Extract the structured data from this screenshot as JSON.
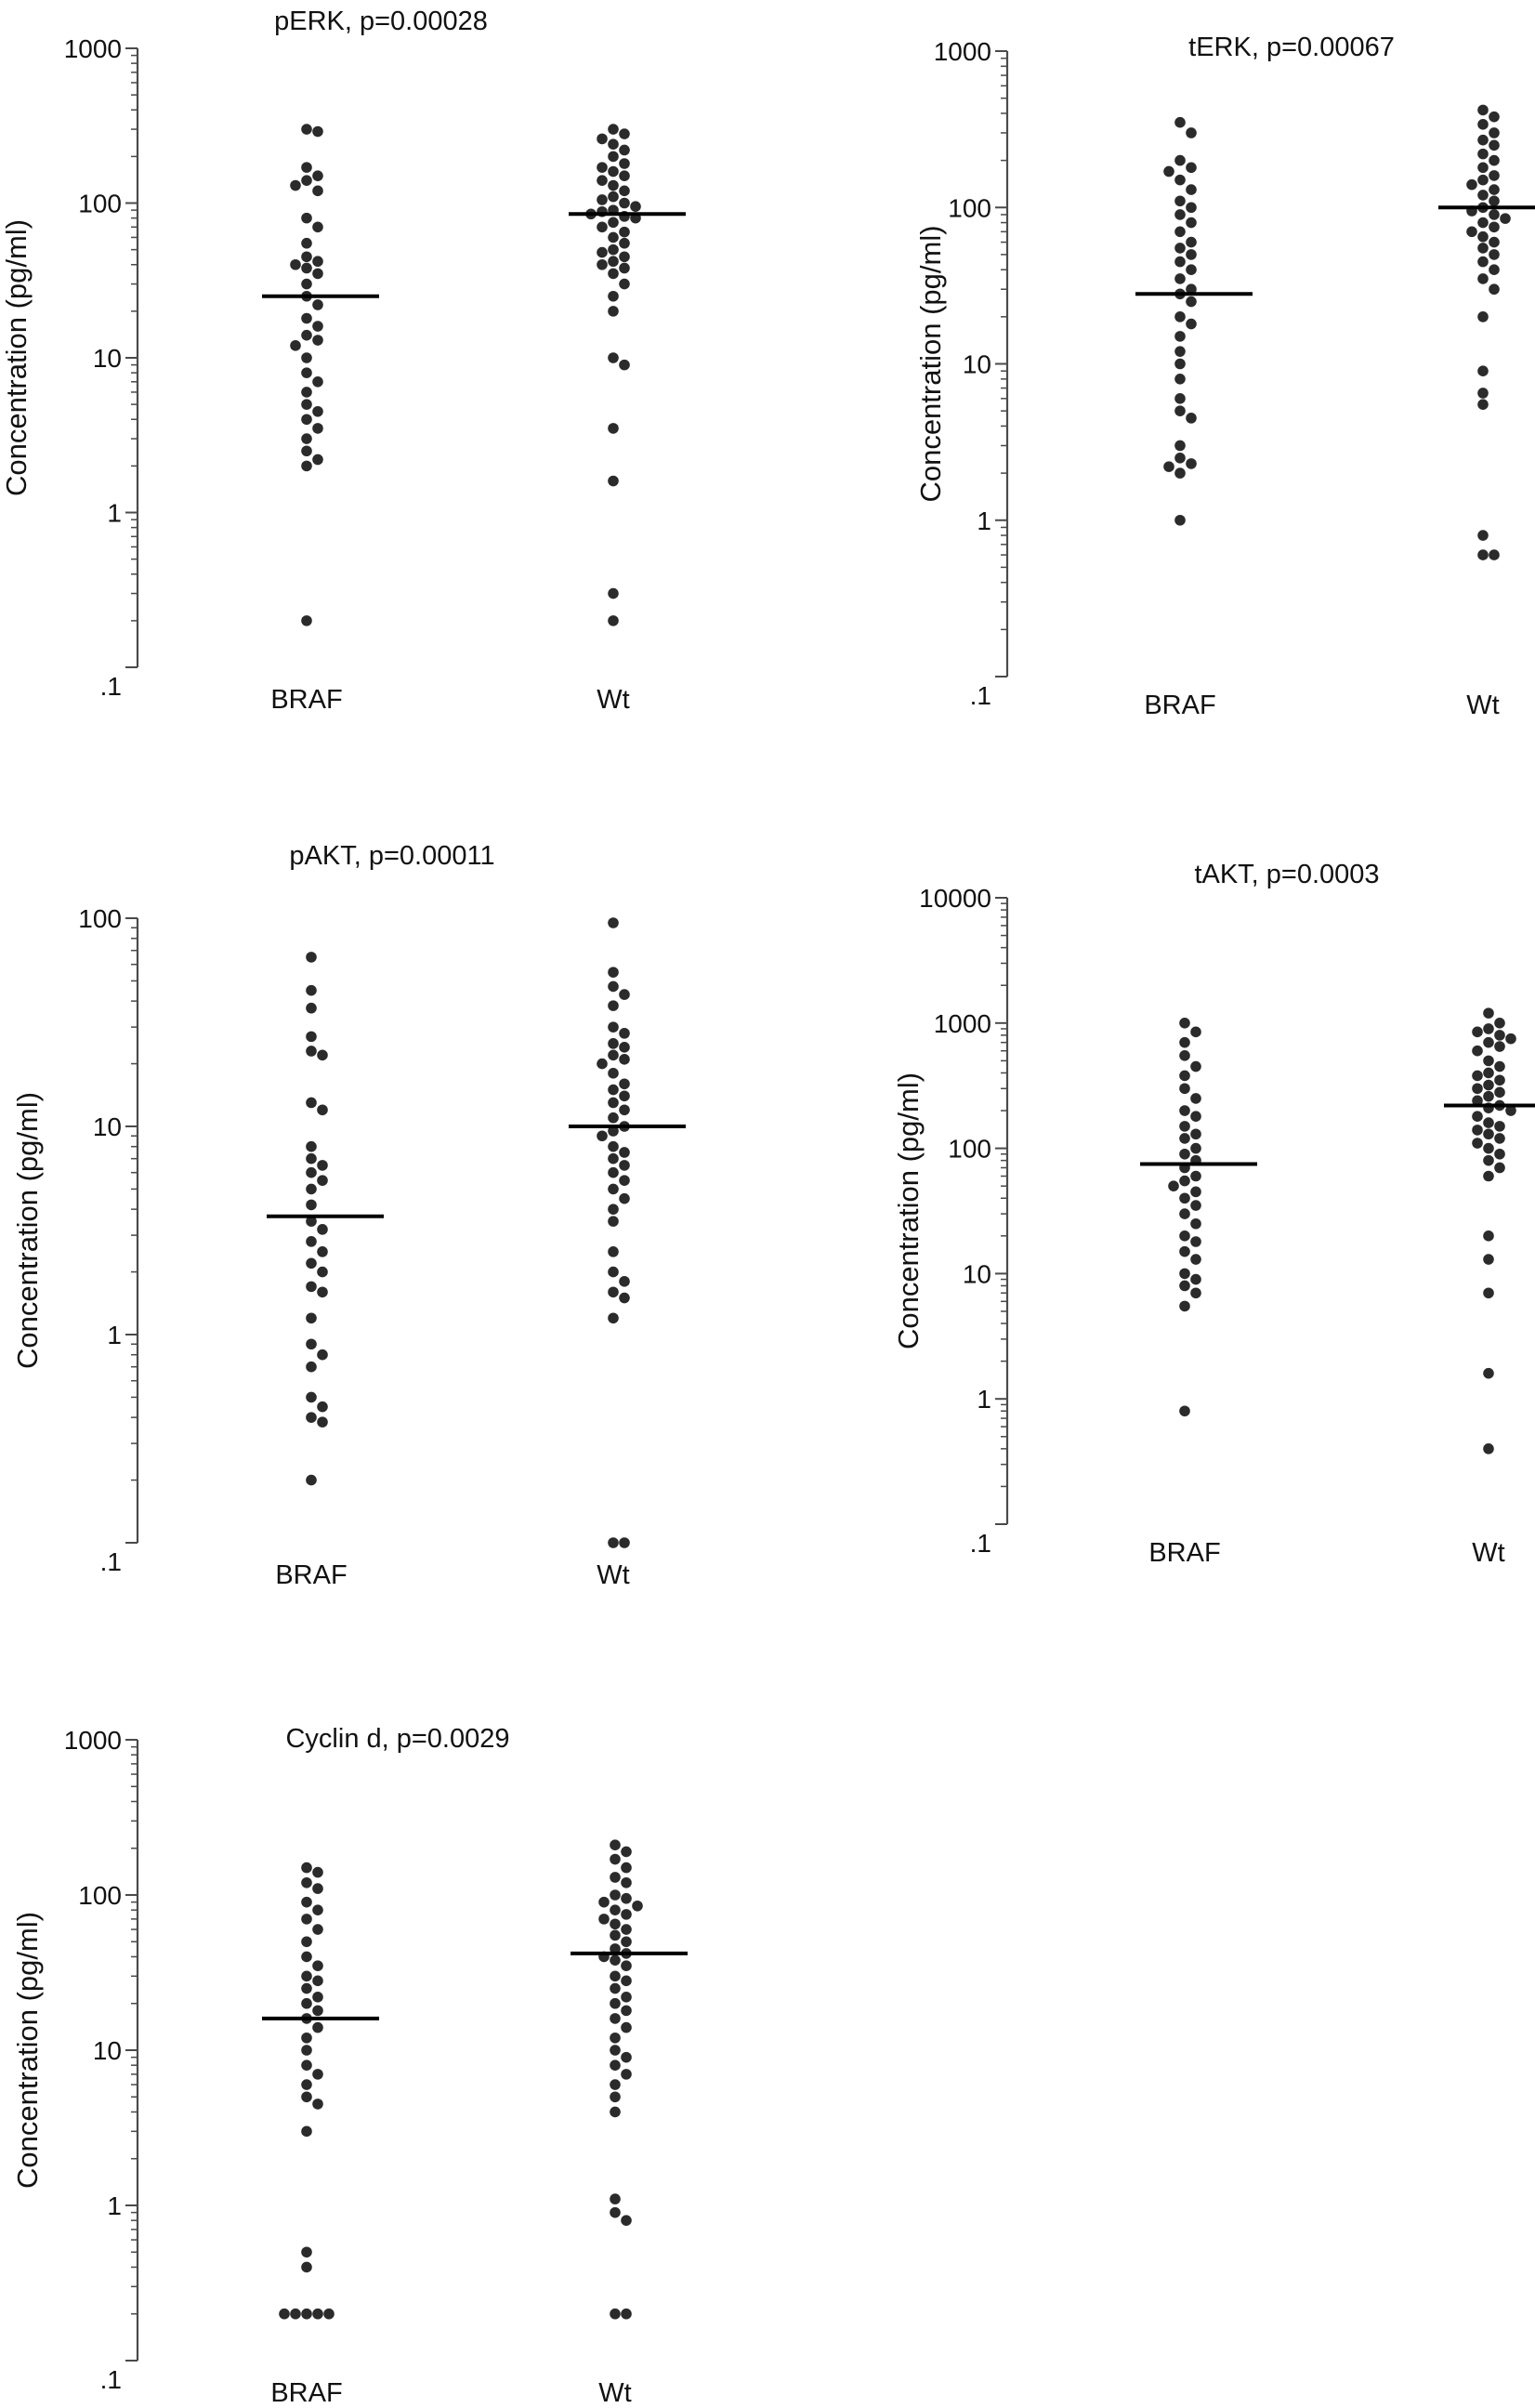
{
  "colors": {
    "axis": "#4a4a4a",
    "dot": "#2b2b2b",
    "median": "#000000",
    "text": "#111111"
  },
  "chart_data": [
    {
      "type": "scatter",
      "title": "pERK, p=0.00028",
      "ylabel": "Concentration (pg/ml)",
      "categories": [
        "BRAF",
        "Wt"
      ],
      "yscale": "log",
      "ylim": [
        0.1,
        1000
      ],
      "yticks": [
        ".1",
        "1",
        "10",
        "100",
        "1000"
      ],
      "medians": [
        25,
        85
      ],
      "series": [
        {
          "values": [
            300,
            290,
            170,
            150,
            140,
            130,
            120,
            80,
            70,
            55,
            45,
            42,
            40,
            38,
            35,
            30,
            25,
            22,
            18,
            16,
            14,
            13,
            12,
            10,
            8,
            7,
            6,
            5,
            4.5,
            4,
            3.5,
            3,
            2.5,
            2.2,
            2,
            0.2
          ]
        },
        {
          "values": [
            300,
            280,
            260,
            240,
            220,
            200,
            180,
            170,
            160,
            150,
            140,
            130,
            120,
            110,
            105,
            100,
            95,
            90,
            88,
            85,
            82,
            80,
            75,
            70,
            65,
            60,
            55,
            50,
            48,
            45,
            42,
            40,
            38,
            35,
            30,
            25,
            20,
            10,
            9,
            3.5,
            1.6,
            0.3,
            0.2
          ]
        }
      ]
    },
    {
      "type": "scatter",
      "title": "tERK, p=0.00067",
      "ylabel": "Concentration (pg/ml)",
      "categories": [
        "BRAF",
        "Wt"
      ],
      "yscale": "log",
      "ylim": [
        0.1,
        1000
      ],
      "yticks": [
        ".1",
        "1",
        "10",
        "100",
        "1000"
      ],
      "medians": [
        28,
        100
      ],
      "series": [
        {
          "values": [
            350,
            300,
            200,
            180,
            170,
            150,
            130,
            110,
            100,
            90,
            80,
            70,
            60,
            55,
            50,
            45,
            40,
            35,
            30,
            28,
            25,
            20,
            18,
            15,
            12,
            10,
            8,
            6,
            5,
            4.5,
            3,
            2.5,
            2.3,
            2.2,
            2,
            1
          ]
        },
        {
          "values": [
            420,
            380,
            340,
            300,
            270,
            250,
            220,
            200,
            180,
            160,
            150,
            140,
            130,
            120,
            110,
            100,
            95,
            90,
            85,
            80,
            75,
            70,
            65,
            60,
            55,
            50,
            45,
            40,
            35,
            30,
            20,
            9,
            6.5,
            5.5,
            0.8,
            0.6,
            0.6
          ]
        }
      ]
    },
    {
      "type": "scatter",
      "title": "pAKT, p=0.00011",
      "ylabel": "Concentration (pg/ml)",
      "categories": [
        "BRAF",
        "Wt"
      ],
      "yscale": "log",
      "ylim": [
        0.1,
        100
      ],
      "yticks": [
        ".1",
        "1",
        "10",
        "100"
      ],
      "medians": [
        3.7,
        10
      ],
      "series": [
        {
          "values": [
            65,
            45,
            37,
            27,
            23,
            22,
            13,
            12,
            8,
            7,
            6.5,
            6,
            5.5,
            5,
            4.2,
            3.5,
            3.2,
            2.8,
            2.5,
            2.2,
            2,
            1.7,
            1.6,
            1.2,
            0.9,
            0.8,
            0.7,
            0.5,
            0.45,
            0.4,
            0.38,
            0.2
          ]
        },
        {
          "values": [
            95,
            55,
            47,
            43,
            38,
            30,
            28,
            25,
            24,
            22,
            21,
            20,
            18,
            16,
            15,
            14,
            13,
            12,
            11,
            10,
            9.5,
            9,
            8,
            7.5,
            7,
            6.5,
            6,
            5.5,
            5,
            4.5,
            4,
            3.5,
            2.5,
            2,
            1.8,
            1.6,
            1.5,
            1.2,
            0.1,
            0.1
          ]
        }
      ]
    },
    {
      "type": "scatter",
      "title": "tAKT, p=0.0003",
      "ylabel": "Concentration (pg/ml)",
      "categories": [
        "BRAF",
        "Wt"
      ],
      "yscale": "log",
      "ylim": [
        0.1,
        10000
      ],
      "yticks": [
        ".1",
        "1",
        "10",
        "100",
        "1000",
        "10000"
      ],
      "medians": [
        75,
        220
      ],
      "series": [
        {
          "values": [
            1000,
            850,
            700,
            550,
            450,
            380,
            300,
            250,
            200,
            180,
            150,
            130,
            120,
            100,
            90,
            80,
            70,
            60,
            55,
            50,
            45,
            40,
            35,
            30,
            25,
            20,
            18,
            15,
            13,
            10,
            9,
            8,
            7,
            5.5,
            0.8
          ]
        },
        {
          "values": [
            1200,
            1000,
            900,
            850,
            800,
            750,
            700,
            650,
            600,
            500,
            450,
            400,
            380,
            350,
            320,
            300,
            280,
            260,
            240,
            220,
            210,
            200,
            180,
            160,
            150,
            140,
            130,
            120,
            110,
            100,
            90,
            80,
            70,
            60,
            20,
            13,
            7,
            1.6,
            0.4
          ]
        }
      ]
    },
    {
      "type": "scatter",
      "title": "Cyclin d, p=0.0029",
      "ylabel": "Concentration (pg/ml)",
      "categories": [
        "BRAF",
        "Wt"
      ],
      "yscale": "log",
      "ylim": [
        0.1,
        1000
      ],
      "yticks": [
        ".1",
        "1",
        "10",
        "100",
        "1000"
      ],
      "medians": [
        16,
        42
      ],
      "series": [
        {
          "values": [
            150,
            140,
            120,
            110,
            90,
            80,
            70,
            60,
            50,
            40,
            35,
            30,
            28,
            25,
            22,
            20,
            18,
            16,
            14,
            12,
            10,
            8,
            7,
            6,
            5,
            4.5,
            3,
            0.5,
            0.4,
            0.2,
            0.2,
            0.2,
            0.2,
            0.2
          ]
        },
        {
          "values": [
            210,
            190,
            170,
            150,
            130,
            120,
            100,
            95,
            90,
            85,
            80,
            75,
            70,
            65,
            60,
            55,
            50,
            45,
            42,
            40,
            38,
            35,
            30,
            28,
            25,
            22,
            20,
            18,
            16,
            14,
            12,
            10,
            9,
            8,
            7,
            6,
            5,
            4,
            1.1,
            0.9,
            0.8,
            0.2,
            0.2
          ]
        }
      ]
    }
  ]
}
